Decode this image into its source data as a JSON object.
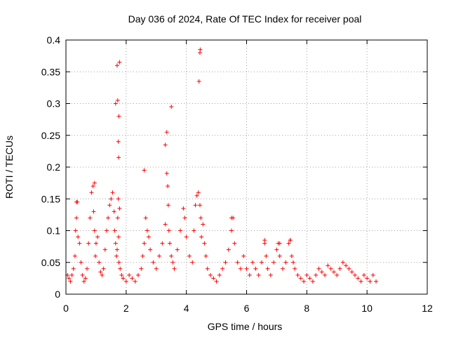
{
  "chart_data": {
    "type": "scatter",
    "title": "Day 036 of 2024, Rate Of TEC Index for receiver poal",
    "xlabel": "GPS time / hours",
    "ylabel": "ROTI / TECUs",
    "xlim": [
      0,
      12
    ],
    "ylim": [
      0,
      0.4
    ],
    "xticks": [
      0,
      2,
      4,
      6,
      8,
      10,
      12
    ],
    "xtick_labels": [
      "0",
      "2",
      "4",
      "6",
      "8",
      "10",
      "12"
    ],
    "yticks": [
      0,
      0.05,
      0.1,
      0.15,
      0.2,
      0.25,
      0.3,
      0.35,
      0.4
    ],
    "ytick_labels": [
      "0",
      "0.05",
      "0.1",
      "0.15",
      "0.2",
      "0.25",
      "0.3",
      "0.35",
      "0.4"
    ],
    "grid": true,
    "marker": "+",
    "color": "#ff0000",
    "series": [
      {
        "name": "ROTI",
        "x": [
          0.05,
          0.1,
          0.15,
          0.2,
          0.25,
          0.3,
          0.32,
          0.35,
          0.38,
          0.4,
          0.45,
          0.5,
          0.55,
          0.6,
          0.65,
          0.7,
          0.75,
          0.8,
          0.85,
          0.9,
          0.92,
          0.95,
          0.98,
          1.0,
          1.05,
          1.1,
          1.15,
          1.2,
          1.25,
          1.3,
          1.35,
          1.4,
          1.45,
          1.5,
          1.55,
          1.6,
          1.62,
          1.65,
          1.68,
          1.7,
          1.72,
          1.74,
          1.75,
          1.76,
          1.78,
          1.8,
          1.85,
          1.9,
          2.0,
          2.1,
          2.2,
          2.3,
          2.4,
          2.5,
          2.55,
          2.6,
          2.65,
          2.7,
          2.75,
          2.8,
          2.9,
          3.0,
          3.1,
          3.2,
          3.3,
          3.35,
          3.38,
          3.4,
          3.42,
          3.45,
          3.5,
          3.55,
          3.6,
          3.7,
          3.8,
          3.9,
          3.95,
          4.0,
          4.1,
          4.2,
          4.25,
          4.3,
          4.35,
          4.4,
          4.45,
          4.48,
          4.5,
          4.55,
          4.6,
          4.65,
          4.7,
          4.8,
          4.9,
          5.0,
          5.1,
          5.2,
          5.3,
          5.4,
          5.5,
          5.55,
          5.6,
          5.7,
          5.8,
          5.9,
          6.0,
          6.1,
          6.2,
          6.3,
          6.4,
          6.5,
          6.6,
          6.65,
          6.7,
          6.8,
          6.9,
          7.0,
          7.05,
          7.1,
          7.2,
          7.3,
          7.4,
          7.45,
          7.5,
          7.55,
          7.6,
          7.7,
          7.8,
          7.9,
          8.0,
          8.1,
          8.2,
          8.3,
          8.4,
          8.5,
          8.6,
          8.7,
          8.8,
          8.9,
          9.0,
          9.1,
          9.2,
          9.3,
          9.4,
          9.5,
          9.6,
          9.7,
          9.8,
          9.9,
          10.0,
          10.1,
          10.2,
          10.3,
          0.35,
          0.95,
          1.65,
          1.7,
          1.72,
          1.74,
          1.75,
          1.76,
          1.78,
          2.6,
          3.3,
          3.35,
          3.5,
          4.42,
          4.45,
          4.46,
          5.5,
          6.6,
          7.1,
          7.45
        ],
        "y": [
          0.03,
          0.025,
          0.02,
          0.03,
          0.04,
          0.06,
          0.1,
          0.12,
          0.145,
          0.09,
          0.08,
          0.05,
          0.03,
          0.02,
          0.025,
          0.04,
          0.08,
          0.12,
          0.16,
          0.17,
          0.13,
          0.1,
          0.06,
          0.08,
          0.09,
          0.05,
          0.035,
          0.03,
          0.04,
          0.07,
          0.1,
          0.12,
          0.14,
          0.15,
          0.16,
          0.13,
          0.1,
          0.08,
          0.06,
          0.07,
          0.12,
          0.15,
          0.09,
          0.05,
          0.135,
          0.04,
          0.03,
          0.025,
          0.02,
          0.03,
          0.025,
          0.02,
          0.03,
          0.04,
          0.06,
          0.08,
          0.12,
          0.1,
          0.09,
          0.07,
          0.05,
          0.04,
          0.06,
          0.08,
          0.11,
          0.19,
          0.17,
          0.14,
          0.1,
          0.08,
          0.06,
          0.05,
          0.04,
          0.07,
          0.1,
          0.135,
          0.12,
          0.09,
          0.06,
          0.05,
          0.1,
          0.14,
          0.155,
          0.16,
          0.14,
          0.12,
          0.09,
          0.11,
          0.08,
          0.06,
          0.04,
          0.03,
          0.025,
          0.02,
          0.03,
          0.04,
          0.05,
          0.07,
          0.1,
          0.12,
          0.08,
          0.05,
          0.04,
          0.06,
          0.04,
          0.03,
          0.05,
          0.04,
          0.03,
          0.05,
          0.08,
          0.06,
          0.04,
          0.03,
          0.05,
          0.07,
          0.08,
          0.06,
          0.04,
          0.05,
          0.08,
          0.085,
          0.06,
          0.05,
          0.04,
          0.03,
          0.025,
          0.02,
          0.03,
          0.025,
          0.02,
          0.03,
          0.04,
          0.035,
          0.03,
          0.045,
          0.04,
          0.035,
          0.03,
          0.04,
          0.05,
          0.045,
          0.04,
          0.035,
          0.03,
          0.025,
          0.02,
          0.03,
          0.025,
          0.02,
          0.03,
          0.02,
          0.145,
          0.175,
          0.3,
          0.36,
          0.305,
          0.24,
          0.215,
          0.28,
          0.365,
          0.195,
          0.235,
          0.255,
          0.295,
          0.335,
          0.38,
          0.385,
          0.12,
          0.085,
          0.08,
          0.085
        ]
      }
    ]
  }
}
